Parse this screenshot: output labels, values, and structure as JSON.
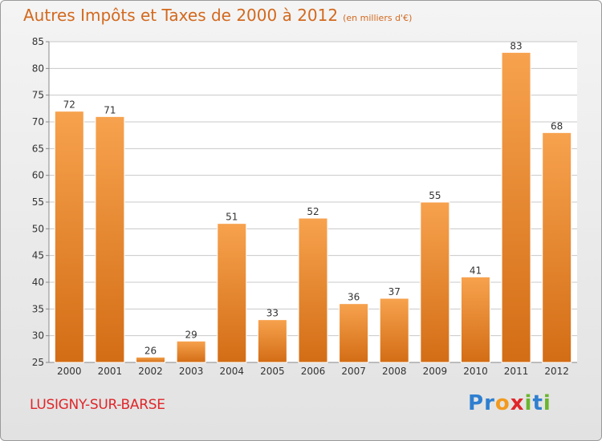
{
  "title": "Autres Impôts et Taxes de 2000 à 2012",
  "subtitle": "(en milliers d'€)",
  "place": "LUSIGNY-SUR-BARSE",
  "logo": {
    "text": "Proxiti",
    "letters": [
      {
        "ch": "P",
        "color": "#2f7fd0"
      },
      {
        "ch": "r",
        "color": "#2f7fd0"
      },
      {
        "ch": "o",
        "color": "#f29a1f"
      },
      {
        "ch": "x",
        "color": "#e0262a"
      },
      {
        "ch": "i",
        "color": "#6bb52e"
      },
      {
        "ch": "t",
        "color": "#2f7fd0"
      },
      {
        "ch": "i",
        "color": "#6bb52e"
      }
    ]
  },
  "colors": {
    "title": "#d2691e",
    "place": "#e0262a",
    "bar_light": "#f7a24e",
    "bar_dark": "#d36d15",
    "grid": "#c8c8c8"
  },
  "chart_data": {
    "type": "bar",
    "categories": [
      "2000",
      "2001",
      "2002",
      "2003",
      "2004",
      "2005",
      "2006",
      "2007",
      "2008",
      "2009",
      "2010",
      "2011",
      "2012"
    ],
    "values": [
      72,
      71,
      26,
      29,
      51,
      33,
      52,
      36,
      37,
      55,
      41,
      83,
      68
    ],
    "ylim": [
      25,
      85
    ],
    "yticks": [
      25,
      30,
      35,
      40,
      45,
      50,
      55,
      60,
      65,
      70,
      75,
      80,
      85
    ],
    "grid": true,
    "data_labels": true
  }
}
